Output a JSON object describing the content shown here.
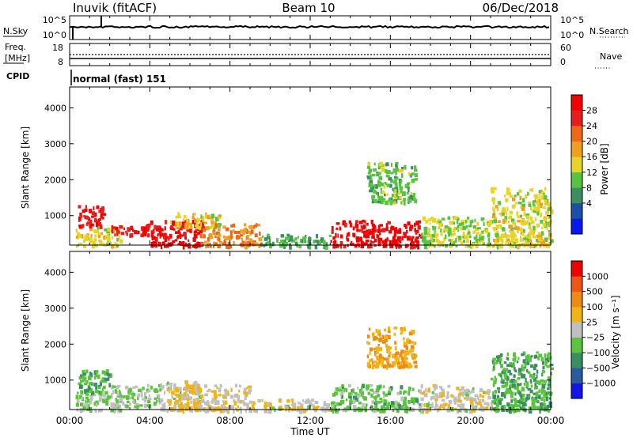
{
  "header": {
    "station": "Inuvik (fitACF)",
    "beam": "Beam 10",
    "date": "06/Dec/2018"
  },
  "ancillary": {
    "nsky_label": "N.Sky",
    "nsky_ticks": [
      "10^5",
      "10^0"
    ],
    "nsearch_label": "N.Search",
    "nsearch_ticks": [
      "10^5",
      "10^0"
    ],
    "freq_label_1": "Freq.",
    "freq_label_2": "[MHz]",
    "freq_ticks": [
      "18",
      "8"
    ],
    "nave_label": "Nave",
    "nave_ticks": [
      "60",
      "0"
    ],
    "cpid_label": "CPID",
    "cpid_text": "normal (fast) 151"
  },
  "time_axis": {
    "label": "Time UT",
    "ticks": [
      "00:00",
      "04:00",
      "08:00",
      "12:00",
      "16:00",
      "20:00",
      "00:00"
    ]
  },
  "power_scale": {
    "label": "Power [dB]",
    "levels": [
      "28",
      "24",
      "20",
      "16",
      "12",
      "8",
      "4"
    ],
    "colors": [
      "#0a18f0",
      "#1d4ea8",
      "#3c8f60",
      "#58c241",
      "#e8d428",
      "#f0a01e",
      "#ef6816",
      "#e81e1e",
      "#f40000"
    ]
  },
  "velocity_scale": {
    "label": "Velocity [m s⁻¹]",
    "levels": [
      "1000",
      "500",
      "100",
      "25",
      "−25",
      "−100",
      "−500",
      "−1000"
    ],
    "colors": [
      "#1414e8",
      "#2c5aa0",
      "#3a8f62",
      "#5ac43c",
      "#c0c0c0",
      "#f0b414",
      "#ee8a16",
      "#ef5418",
      "#ee0000"
    ]
  },
  "chart_data": [
    {
      "type": "heatmap",
      "title": "",
      "xlabel": "Time UT",
      "ylabel": "Slant Range [km]",
      "xlim": [
        "00:00",
        "24:00"
      ],
      "ylim": [
        180,
        4580
      ],
      "y_ticks": [
        1000,
        2000,
        3000,
        4000
      ],
      "colorbar": {
        "label": "Power [dB]",
        "range": [
          0,
          32
        ]
      },
      "regions": [
        {
          "t": [
            0.3,
            2.5
          ],
          "range": [
            180,
            700
          ],
          "value": 16
        },
        {
          "t": [
            0.4,
            1.7
          ],
          "range": [
            700,
            1300
          ],
          "value": 28
        },
        {
          "t": [
            2.0,
            4.5
          ],
          "range": [
            500,
            800
          ],
          "value": 28
        },
        {
          "t": [
            4.0,
            6.6
          ],
          "range": [
            180,
            900
          ],
          "value": 30
        },
        {
          "t": [
            5.0,
            7.5
          ],
          "range": [
            700,
            1100
          ],
          "value": 16
        },
        {
          "t": [
            6.5,
            9.5
          ],
          "range": [
            180,
            800
          ],
          "value": 22
        },
        {
          "t": [
            9.5,
            13.0
          ],
          "range": [
            180,
            500
          ],
          "value": 10
        },
        {
          "t": [
            13.0,
            17.5
          ],
          "range": [
            180,
            900
          ],
          "value": 30
        },
        {
          "t": [
            14.8,
            17.2
          ],
          "range": [
            1400,
            2500
          ],
          "value": 12
        },
        {
          "t": [
            17.5,
            21.0
          ],
          "range": [
            180,
            1000
          ],
          "value": 14
        },
        {
          "t": [
            21.0,
            24.0
          ],
          "range": [
            180,
            1800
          ],
          "value": 16
        }
      ]
    },
    {
      "type": "heatmap",
      "title": "",
      "xlabel": "Time UT",
      "ylabel": "Slant Range [km]",
      "xlim": [
        "00:00",
        "24:00"
      ],
      "ylim": [
        180,
        4580
      ],
      "y_ticks": [
        1000,
        2000,
        3000,
        4000
      ],
      "colorbar": {
        "label": "Velocity [m s⁻¹]",
        "range": [
          -1000,
          1000
        ]
      },
      "regions": [
        {
          "t": [
            0.3,
            2.5
          ],
          "range": [
            180,
            700
          ],
          "value": -100
        },
        {
          "t": [
            0.4,
            2.0
          ],
          "range": [
            700,
            1300
          ],
          "value": -300
        },
        {
          "t": [
            2.0,
            4.5
          ],
          "range": [
            300,
            900
          ],
          "value": -100
        },
        {
          "t": [
            4.5,
            6.5
          ],
          "range": [
            180,
            1000
          ],
          "value": 0
        },
        {
          "t": [
            5.0,
            9.0
          ],
          "range": [
            180,
            900
          ],
          "value": 100
        },
        {
          "t": [
            9.0,
            13.0
          ],
          "range": [
            180,
            500
          ],
          "value": 60
        },
        {
          "t": [
            13.0,
            17.5
          ],
          "range": [
            180,
            900
          ],
          "value": -200
        },
        {
          "t": [
            14.8,
            17.2
          ],
          "range": [
            1400,
            2500
          ],
          "value": 300
        },
        {
          "t": [
            17.5,
            21.0
          ],
          "range": [
            180,
            900
          ],
          "value": 50
        },
        {
          "t": [
            21.0,
            24.0
          ],
          "range": [
            180,
            1800
          ],
          "value": -300
        }
      ]
    }
  ]
}
